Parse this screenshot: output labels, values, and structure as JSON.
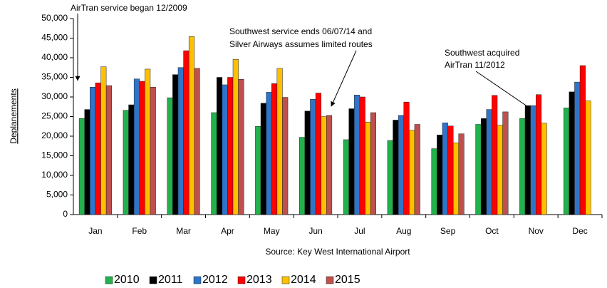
{
  "chart_data": {
    "type": "bar",
    "y_axis_label": "Deplanements",
    "source": "Source: Key West International Airport",
    "annotations": [
      {
        "lines": [
          "AirTran service began 12/2009"
        ]
      },
      {
        "lines": [
          "Southwest  service ends 06/07/14 and",
          "Silver Airways assumes limited routes"
        ]
      },
      {
        "lines": [
          "Southwest acquired",
          "AirTran  11/2012"
        ]
      }
    ],
    "categories": [
      "Jan",
      "Feb",
      "Mar",
      "Apr",
      "May",
      "Jun",
      "Jul",
      "Aug",
      "Sep",
      "Oct",
      "Nov",
      "Dec"
    ],
    "series": [
      {
        "name": "2010",
        "color": "#22b14c",
        "values": [
          24500,
          26600,
          29800,
          26000,
          22500,
          19700,
          19100,
          18900,
          16800,
          23000,
          24500,
          27200
        ]
      },
      {
        "name": "2011",
        "color": "#000000",
        "values": [
          26800,
          28000,
          35700,
          35000,
          28400,
          26400,
          27000,
          24100,
          20300,
          24500,
          27800,
          31300
        ]
      },
      {
        "name": "2012",
        "color": "#2e75c9",
        "values": [
          32500,
          34600,
          37500,
          33100,
          31200,
          29400,
          30500,
          25300,
          23400,
          26800,
          27800,
          33800
        ]
      },
      {
        "name": "2013",
        "color": "#ff0000",
        "values": [
          33600,
          34000,
          41800,
          35000,
          33400,
          31000,
          30000,
          28700,
          22600,
          30400,
          30600,
          38000
        ]
      },
      {
        "name": "2014",
        "color": "#ffc000",
        "values": [
          37700,
          37100,
          45400,
          39600,
          37300,
          25000,
          23600,
          21500,
          18300,
          22800,
          23300,
          29000
        ]
      },
      {
        "name": "2015",
        "color": "#c0504d",
        "values": [
          32900,
          32500,
          37300,
          34500,
          29900,
          25300,
          26000,
          23000,
          20600,
          26200,
          null,
          null
        ]
      }
    ],
    "ylim": [
      0,
      50000
    ],
    "yticks": [
      0,
      {
        "value": 5000,
        "label": "5,000"
      },
      {
        "value": 10000,
        "label": "10,000"
      },
      {
        "value": 15000,
        "label": "15,000"
      },
      {
        "value": 20000,
        "label": "20,000"
      },
      {
        "value": 25000,
        "label": "25,000"
      },
      {
        "value": 30000,
        "label": "30,000"
      },
      {
        "value": 35000,
        "label": "35,000"
      },
      {
        "value": 40000,
        "label": "40,000"
      },
      {
        "value": 45000,
        "label": "45,000"
      },
      {
        "value": 50000,
        "label": "50,000"
      }
    ]
  }
}
